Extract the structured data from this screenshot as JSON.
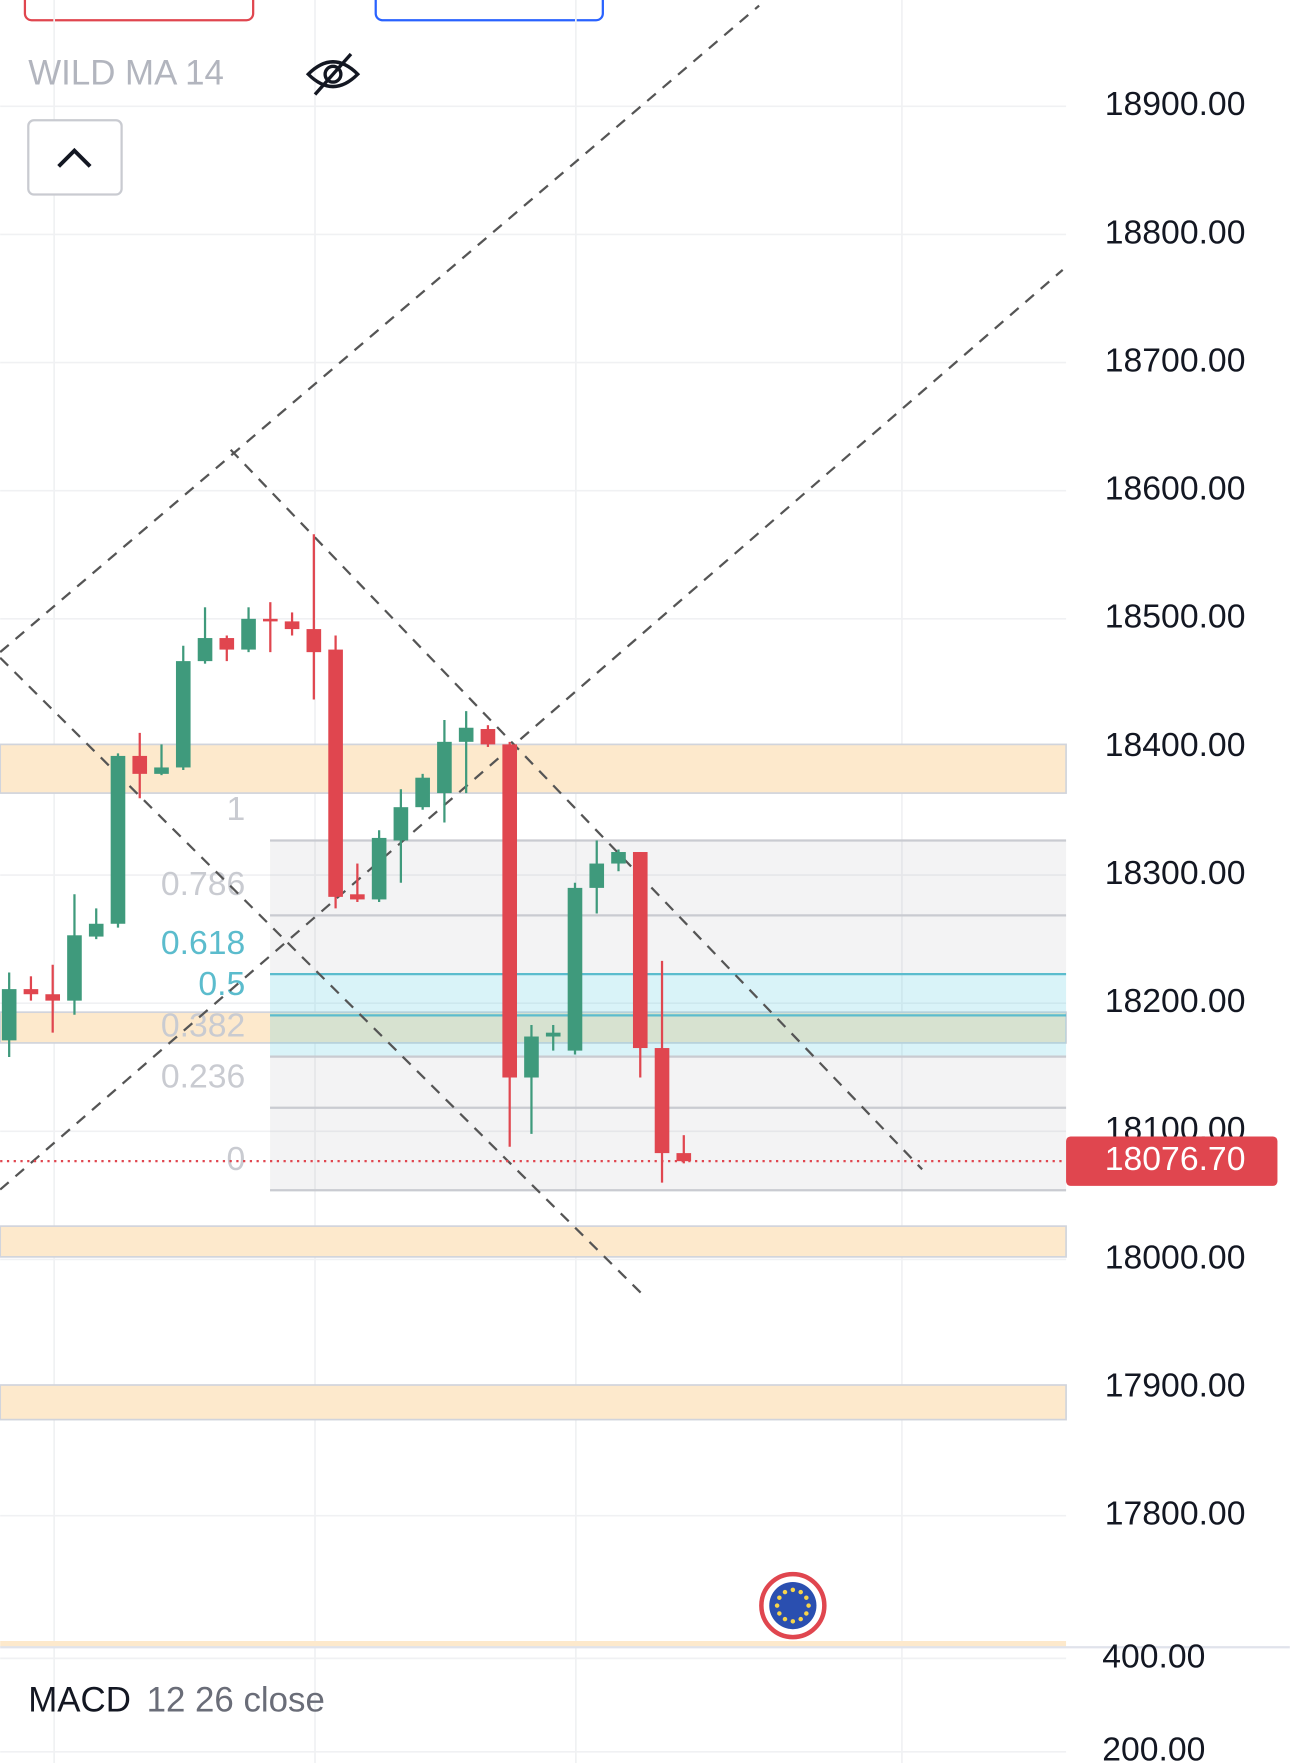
{
  "chart_data": {
    "type": "candlestick",
    "indicator_label": "WILD MA 14",
    "ylim": [
      17700,
      18983
    ],
    "yticks": [
      {
        "value": 17800,
        "label": "17800.00"
      },
      {
        "value": 17900,
        "label": "17900.00"
      },
      {
        "value": 18000,
        "label": "18000.00"
      },
      {
        "value": 18100,
        "label": "18100.00"
      },
      {
        "value": 18200,
        "label": "18200.00"
      },
      {
        "value": 18300,
        "label": "18300.00"
      },
      {
        "value": 18400,
        "label": "18400.00"
      },
      {
        "value": 18500,
        "label": "18500.00"
      },
      {
        "value": 18600,
        "label": "18600.00"
      },
      {
        "value": 18700,
        "label": "18700.00"
      },
      {
        "value": 18800,
        "label": "18800.00"
      },
      {
        "value": 18900,
        "label": "18900.00"
      }
    ],
    "grid": true,
    "up_color": "#3f9a7c",
    "down_color": "#e0464f",
    "open": [
      18171,
      18211,
      18207,
      18202,
      18252,
      18262,
      18393,
      18379,
      18384,
      18467,
      18485,
      18476,
      18500,
      18498,
      18492,
      18476,
      18285,
      18281,
      18327,
      18353,
      18364,
      18404,
      18414,
      18402,
      18142,
      18174,
      18163,
      18290,
      18309,
      18318,
      18165,
      18083
    ],
    "high": [
      18224,
      18221,
      18230,
      18285,
      18274,
      18395,
      18411,
      18402,
      18479,
      18509,
      18487,
      18509,
      18513,
      18505,
      18566,
      18487,
      18309,
      18335,
      18367,
      18379,
      18421,
      18428,
      18417,
      18404,
      18183,
      18183,
      18294,
      18327,
      18320,
      18318,
      18233,
      18097
    ],
    "low": [
      18158,
      18202,
      18177,
      18191,
      18250,
      18259,
      18360,
      18378,
      18382,
      18465,
      18467,
      18474,
      18474,
      18487,
      18437,
      18274,
      18279,
      18279,
      18294,
      18351,
      18341,
      18364,
      18400,
      18088,
      18098,
      18163,
      18160,
      18270,
      18303,
      18142,
      18060,
      18075
    ],
    "close": [
      18211,
      18207,
      18202,
      18253,
      18262,
      18393,
      18379,
      18384,
      18467,
      18485,
      18476,
      18500,
      18498,
      18492,
      18474,
      18283,
      18281,
      18329,
      18353,
      18376,
      18404,
      18415,
      18402,
      18142,
      18174,
      18177,
      18290,
      18309,
      18318,
      18165,
      18083,
      18076.7
    ],
    "last_price": {
      "value": 18076.7,
      "label": "18076.70"
    },
    "zones": [
      [
        18364,
        18402
      ],
      [
        18169,
        18193
      ],
      [
        18002,
        18026
      ],
      [
        17875,
        17902
      ]
    ],
    "zone_color": "#fde9cc",
    "fib": {
      "top": 18327,
      "bottom": 18054,
      "levels": [
        1,
        0.786,
        0.618,
        0.5,
        0.382,
        0.236,
        0
      ],
      "colors": [
        "#c9cbd1",
        "#c9cbd1",
        "#5bbccd",
        "#5bbccd",
        "#c9cbd1",
        "#c9cbd1",
        "#c9cbd1"
      ],
      "band_fills": [
        "rgba(120,123,134,0.09)",
        "rgba(120,123,134,0.09)",
        "rgba(80,200,225,0.22)",
        "rgba(80,200,225,0.22)",
        "rgba(120,123,134,0.09)",
        "rgba(120,123,134,0.09)"
      ]
    },
    "macd": {
      "name": "MACD",
      "params": "12 26 close",
      "ylim": [
        176,
        424
      ],
      "yticks": [
        {
          "value": 400,
          "label": "400.00"
        },
        {
          "value": 200,
          "label": "200.00"
        }
      ]
    }
  }
}
